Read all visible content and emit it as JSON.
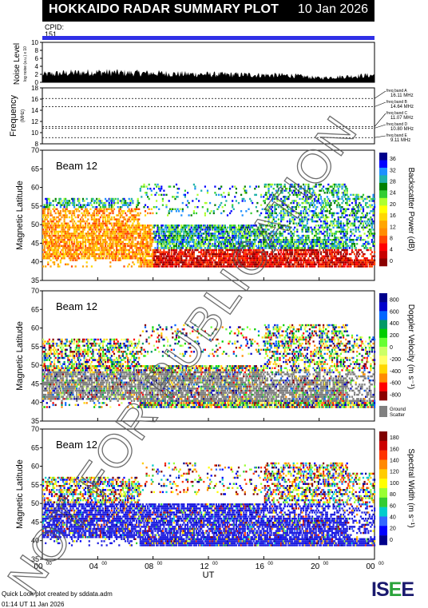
{
  "header": {
    "title": "HOKKAIDO RADAR SUMMARY PLOT",
    "date": "10 Jan 2026"
  },
  "cpid": {
    "label": "CPID:",
    "value": "151"
  },
  "noise_panel": {
    "ylabel": "Noise Level",
    "ylabel_small": "log noise (a.u.) x 10",
    "yticks": [
      "0",
      "2",
      "4",
      "6",
      "8",
      "10"
    ]
  },
  "freq_panel": {
    "ylabel": "Frequency",
    "unit": "(MHz)",
    "yticks": [
      "8",
      "10",
      "12",
      "14",
      "16",
      "18"
    ],
    "bands": [
      {
        "name": "freq band A",
        "value": "16.11 MHz"
      },
      {
        "name": "freq band B",
        "value": "14.64 MHz"
      },
      {
        "name": "freq band C",
        "value": "11.07 MHz"
      },
      {
        "name": "freq band D",
        "value": "10.80 MHz"
      },
      {
        "name": "freq band E",
        "value": "9.11 MHz"
      }
    ]
  },
  "panels": [
    {
      "beam": "Beam 12",
      "ylabel": "Magnetic Latitude",
      "yticks": [
        "35",
        "40",
        "45",
        "50",
        "55",
        "60",
        "65",
        "70"
      ],
      "cbar_label": "Backscatter Power (dB)",
      "cbar_ticks": [
        "0",
        "4",
        "8",
        "12",
        "16",
        "20",
        "24",
        "28",
        "32",
        "36"
      ]
    },
    {
      "beam": "Beam 12",
      "ylabel": "Magnetic Latitude",
      "yticks": [
        "35",
        "40",
        "45",
        "50",
        "55",
        "60",
        "65",
        "70"
      ],
      "cbar_label": "Doppler Velocity (m s⁻¹)",
      "cbar_ticks": [
        "-800",
        "-600",
        "-400",
        "-200",
        "0",
        "200",
        "400",
        "600",
        "800"
      ],
      "ground_label": "Ground",
      "ground_label2": "Scatter"
    },
    {
      "beam": "Beam 12",
      "ylabel": "Magnetic Latitude",
      "yticks": [
        "35",
        "40",
        "45",
        "50",
        "55",
        "60",
        "65",
        "70"
      ],
      "cbar_label": "Spectral Width (m s⁻¹)",
      "cbar_ticks": [
        "0",
        "20",
        "40",
        "60",
        "80",
        "100",
        "120",
        "140",
        "160",
        "180"
      ]
    }
  ],
  "xaxis": {
    "ticks": [
      "00",
      "04",
      "08",
      "12",
      "16",
      "20",
      "00"
    ],
    "sup": "00",
    "label": "UT"
  },
  "watermark": "NOT FOR PUBLICATION",
  "footer": {
    "line1": "Quick Look plot created by sddata.adm",
    "line2": "01:14 UT 11 Jan 2026"
  },
  "logo": {
    "text1": "IS",
    "text2": "E",
    "text3": "E"
  },
  "colors": {
    "accent": "#2f2fe6",
    "ground": "#808080"
  },
  "chart_data": [
    {
      "type": "area",
      "title": "Noise Level",
      "xlabel": "UT",
      "ylabel": "Noise Level",
      "ylim": [
        0,
        10
      ],
      "x": [
        0,
        2,
        4,
        6,
        8,
        10,
        12,
        14,
        16,
        18,
        20,
        22,
        24
      ],
      "values": [
        2.2,
        2.6,
        2.8,
        2.6,
        2.5,
        2.3,
        2.2,
        2.1,
        2.0,
        1.9,
        1.2,
        1.6,
        2.0
      ]
    },
    {
      "type": "line",
      "title": "Frequency",
      "ylabel": "Frequency (MHz)",
      "ylim": [
        8,
        18
      ],
      "series": [
        {
          "name": "freq band A",
          "value": 16.11
        },
        {
          "name": "freq band B",
          "value": 14.64
        },
        {
          "name": "freq band C",
          "value": 11.07
        },
        {
          "name": "freq band D",
          "value": 10.8
        },
        {
          "name": "freq band E",
          "value": 9.11
        }
      ]
    },
    {
      "type": "heatmap",
      "title": "Beam 12",
      "ylabel": "Magnetic Latitude",
      "ylim": [
        35,
        70
      ],
      "xlim": [
        0,
        24
      ],
      "colorbar": "Backscatter Power (dB)",
      "crange": [
        0,
        36
      ]
    },
    {
      "type": "heatmap",
      "title": "Beam 12",
      "ylabel": "Magnetic Latitude",
      "ylim": [
        35,
        70
      ],
      "xlim": [
        0,
        24
      ],
      "colorbar": "Doppler Velocity (m s⁻¹)",
      "crange": [
        -800,
        800
      ]
    },
    {
      "type": "heatmap",
      "title": "Beam 12",
      "ylabel": "Magnetic Latitude",
      "ylim": [
        35,
        70
      ],
      "xlim": [
        0,
        24
      ],
      "colorbar": "Spectral Width (m s⁻¹)",
      "crange": [
        0,
        180
      ]
    }
  ]
}
